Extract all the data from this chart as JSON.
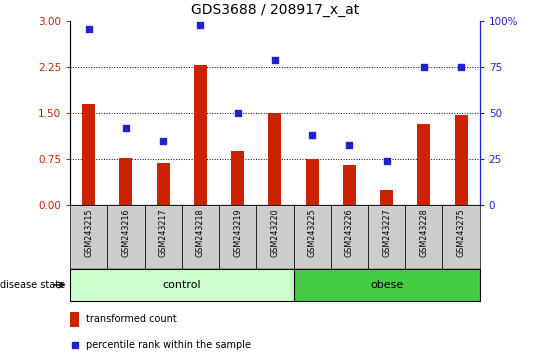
{
  "title": "GDS3688 / 208917_x_at",
  "samples": [
    "GSM243215",
    "GSM243216",
    "GSM243217",
    "GSM243218",
    "GSM243219",
    "GSM243220",
    "GSM243225",
    "GSM243226",
    "GSM243227",
    "GSM243228",
    "GSM243275"
  ],
  "bar_values": [
    1.65,
    0.77,
    0.69,
    2.28,
    0.88,
    1.5,
    0.75,
    0.66,
    0.25,
    1.32,
    1.47
  ],
  "scatter_pct": [
    96,
    42,
    35,
    98,
    50,
    79,
    38,
    33,
    24,
    75,
    75
  ],
  "bar_color": "#cc2200",
  "scatter_color": "#2222cc",
  "ylim_left": [
    0,
    3
  ],
  "ylim_right": [
    0,
    100
  ],
  "yticks_left": [
    0,
    0.75,
    1.5,
    2.25,
    3
  ],
  "yticks_right": [
    0,
    25,
    50,
    75,
    100
  ],
  "ylabel_right_ticks": [
    "0",
    "25",
    "50",
    "75",
    "100%"
  ],
  "n_control": 6,
  "n_obese": 5,
  "control_label": "control",
  "obese_label": "obese",
  "disease_state_label": "disease state",
  "legend_bar_label": "transformed count",
  "legend_scatter_label": "percentile rank within the sample",
  "control_color_light": "#ccffcc",
  "control_color_dark": "#66dd66",
  "obese_color": "#44cc44",
  "bar_width": 0.35,
  "label_bg_color": "#cccccc"
}
